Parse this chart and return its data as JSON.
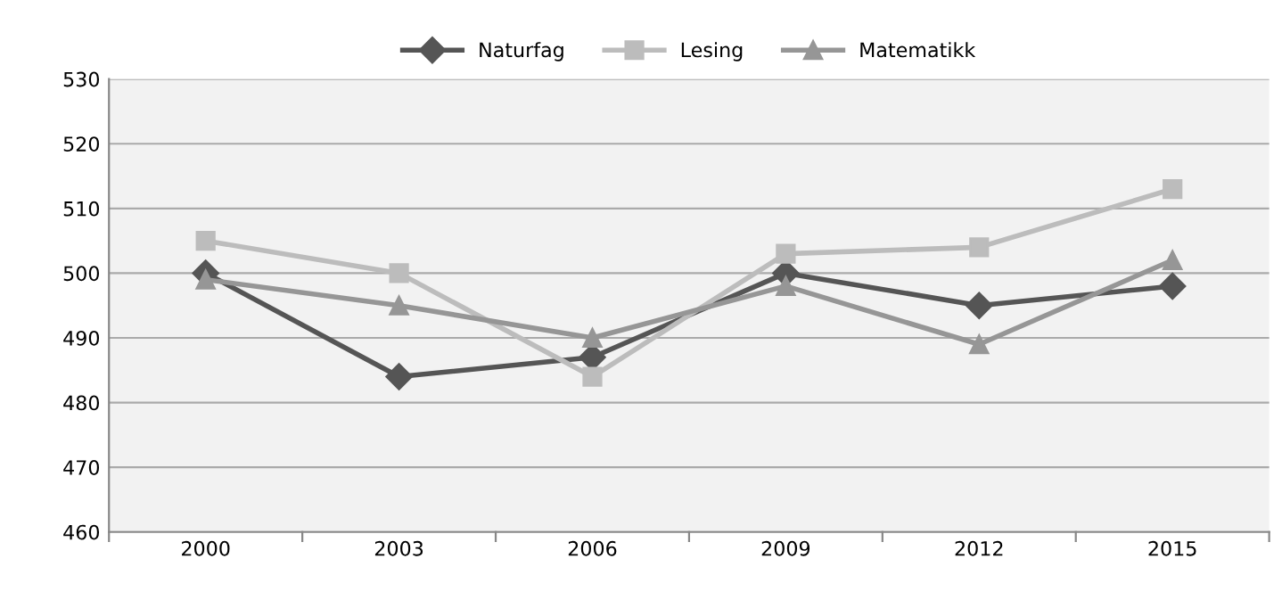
{
  "chart_data": {
    "type": "line",
    "categories": [
      "2000",
      "2003",
      "2006",
      "2009",
      "2012",
      "2015"
    ],
    "series": [
      {
        "name": "Naturfag",
        "color": "#555555",
        "marker": "diamond",
        "values": [
          500,
          484,
          487,
          500,
          495,
          498
        ]
      },
      {
        "name": "Lesing",
        "color": "#bcbcbc",
        "marker": "square",
        "values": [
          505,
          500,
          484,
          503,
          504,
          513
        ]
      },
      {
        "name": "Matematikk",
        "color": "#969696",
        "marker": "triangle",
        "values": [
          499,
          495,
          490,
          498,
          489,
          502
        ]
      }
    ],
    "ylim": [
      460,
      530
    ],
    "yticks": [
      460,
      470,
      480,
      490,
      500,
      510,
      520,
      530
    ],
    "grid": "y",
    "legend": "top",
    "line_style": "solid"
  }
}
